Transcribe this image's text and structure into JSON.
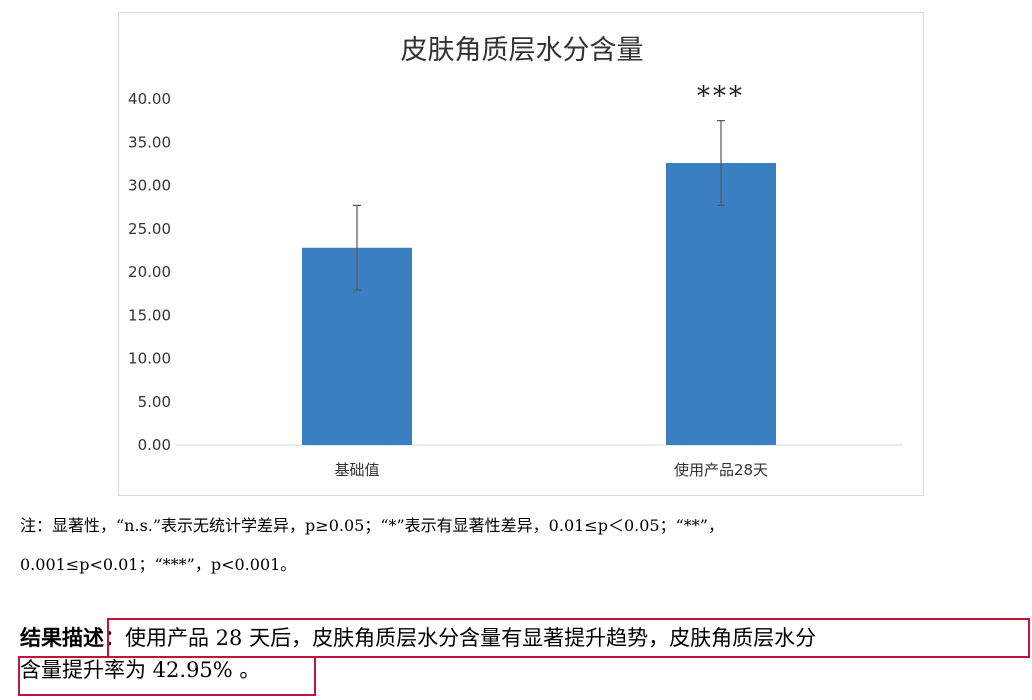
{
  "chart_data": {
    "type": "bar",
    "title": "皮肤角质层水分含量",
    "categories": [
      "基础值",
      "使用产品28天"
    ],
    "values": [
      22.8,
      32.6
    ],
    "error": [
      4.9,
      4.9
    ],
    "significance": [
      "",
      "***"
    ],
    "ylim": [
      0,
      40
    ],
    "yticks": [
      "0.00",
      "5.00",
      "10.00",
      "15.00",
      "20.00",
      "25.00",
      "30.00",
      "35.00",
      "40.00"
    ],
    "grid": false,
    "legend": "none",
    "bar_color": "#3a7fc1",
    "error_color": "#555555"
  },
  "note": {
    "line1": "注：显著性，“n.s.”表示无统计学差异，p≥0.05；“*”表示有显著性差异，0.01≤p＜0.05；“**”，",
    "line2": "0.001≤p<0.01；“***”，p<0.001。"
  },
  "result": {
    "label": "结果描述：",
    "line1_text": "使用产品 28 天后，皮肤角质层水分含量有显著提升趋势，皮肤角质层水分",
    "line2_text": "含量提升率为 42.95% 。"
  },
  "highlight_color": "#c0143c"
}
